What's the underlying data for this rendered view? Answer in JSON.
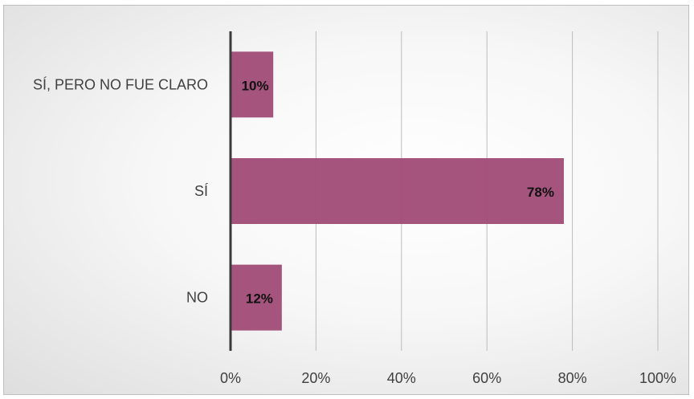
{
  "chart_data": {
    "type": "bar",
    "orientation": "horizontal",
    "categories": [
      "SÍ, PERO NO FUE CLARO",
      "SÍ",
      "NO"
    ],
    "values": [
      10,
      78,
      12
    ],
    "data_labels": [
      "10%",
      "78%",
      "12%"
    ],
    "xlim": [
      0,
      100
    ],
    "x_ticks": [
      0,
      20,
      40,
      60,
      80,
      100
    ],
    "x_tick_labels": [
      "0%",
      "20%",
      "40%",
      "60%",
      "80%",
      "100%"
    ],
    "grid": true,
    "legend": "none",
    "bar_color": "#a14d78"
  }
}
